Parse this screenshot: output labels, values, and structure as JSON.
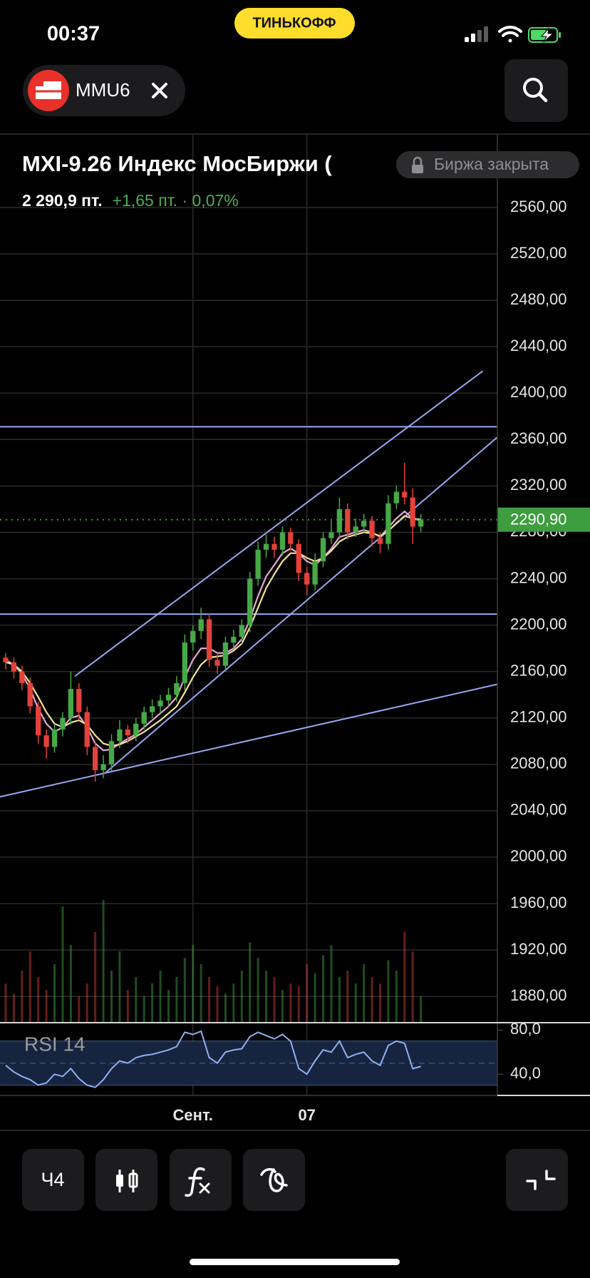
{
  "status_bar": {
    "time": "00:37",
    "brand": "ТИНЬКОФФ"
  },
  "header": {
    "ticker": "MMU6"
  },
  "instrument": {
    "title": "MXI-9.26 Индекс МосБиржи (",
    "status": "Биржа закрыта",
    "price": "2 290,9 пт.",
    "change": "+1,65 пт. · 0,07%"
  },
  "chart_data": [
    {
      "type": "candlestick",
      "up_color": "#46a946",
      "down_color": "#e2423a",
      "xlim": [
        -0.7,
        60.4
      ],
      "ylim": [
        1857.3,
        2623.3
      ],
      "yticks": [
        {
          "value": 2560,
          "label": "2560,00"
        },
        {
          "value": 2520,
          "label": "2520,00"
        },
        {
          "value": 2480,
          "label": "2480,00"
        },
        {
          "value": 2440,
          "label": "2440,00"
        },
        {
          "value": 2400,
          "label": "2400,00"
        },
        {
          "value": 2360,
          "label": "2360,00"
        },
        {
          "value": 2320,
          "label": "2320,00"
        },
        {
          "value": 2280,
          "label": "2280,00"
        },
        {
          "value": 2240,
          "label": "2240,00"
        },
        {
          "value": 2200,
          "label": "2200,00"
        },
        {
          "value": 2160,
          "label": "2160,00"
        },
        {
          "value": 2120,
          "label": "2120,00"
        },
        {
          "value": 2080,
          "label": "2080,00"
        },
        {
          "value": 2040,
          "label": "2040,00"
        },
        {
          "value": 2000,
          "label": "2000,00"
        },
        {
          "value": 1960,
          "label": "1960,00"
        },
        {
          "value": 1920,
          "label": "1920,00"
        },
        {
          "value": 1880,
          "label": "1880,00"
        }
      ],
      "grid": true,
      "categories": [
        null,
        null,
        null,
        null,
        null,
        null,
        null,
        null,
        null,
        null,
        null,
        null,
        null,
        null,
        null,
        null,
        null,
        null,
        null,
        null,
        null,
        null,
        null,
        "Сент.",
        null,
        null,
        null,
        null,
        null,
        null,
        null,
        null,
        null,
        null,
        null,
        null,
        null,
        "07",
        null,
        null,
        null,
        null,
        null,
        null,
        null,
        null,
        null,
        null,
        null,
        null,
        null,
        null
      ],
      "open": [
        2172,
        2168,
        2160,
        2150,
        2130,
        2105,
        2095,
        2110,
        2120,
        2145,
        2125,
        2095,
        2075,
        2080,
        2100,
        2110,
        2105,
        2115,
        2125,
        2130,
        2135,
        2140,
        2150,
        2185,
        2195,
        2205,
        2170,
        2165,
        2185,
        2190,
        2200,
        2240,
        2265,
        2270,
        2265,
        2280,
        2270,
        2245,
        2235,
        2255,
        2275,
        2280,
        2300,
        2280,
        2285,
        2290,
        2275,
        2270,
        2305,
        2315,
        2310,
        2285
      ],
      "high": [
        2176,
        2172,
        2165,
        2155,
        2134,
        2110,
        2115,
        2125,
        2160,
        2150,
        2130,
        2100,
        2088,
        2106,
        2118,
        2114,
        2120,
        2130,
        2136,
        2140,
        2146,
        2156,
        2192,
        2200,
        2215,
        2210,
        2176,
        2190,
        2196,
        2205,
        2246,
        2272,
        2278,
        2276,
        2285,
        2284,
        2274,
        2250,
        2262,
        2280,
        2290,
        2310,
        2305,
        2292,
        2296,
        2294,
        2280,
        2312,
        2320,
        2340,
        2318,
        2296
      ],
      "low": [
        2162,
        2154,
        2144,
        2124,
        2098,
        2085,
        2090,
        2104,
        2114,
        2118,
        2088,
        2065,
        2068,
        2074,
        2094,
        2098,
        2100,
        2110,
        2120,
        2124,
        2130,
        2134,
        2144,
        2178,
        2188,
        2164,
        2158,
        2160,
        2180,
        2184,
        2194,
        2234,
        2258,
        2258,
        2260,
        2264,
        2238,
        2226,
        2230,
        2250,
        2270,
        2274,
        2274,
        2276,
        2280,
        2268,
        2262,
        2265,
        2300,
        2304,
        2270,
        2280
      ],
      "close": [
        2168,
        2160,
        2150,
        2130,
        2105,
        2095,
        2110,
        2120,
        2145,
        2125,
        2095,
        2075,
        2080,
        2100,
        2110,
        2105,
        2115,
        2125,
        2130,
        2135,
        2140,
        2150,
        2185,
        2195,
        2205,
        2170,
        2165,
        2185,
        2190,
        2200,
        2240,
        2265,
        2270,
        2265,
        2280,
        2270,
        2245,
        2235,
        2255,
        2275,
        2280,
        2300,
        2280,
        2285,
        2290,
        2275,
        2270,
        2305,
        2315,
        2310,
        2285,
        2290.9
      ],
      "volume": [
        30,
        22,
        40,
        55,
        35,
        25,
        45,
        90,
        60,
        20,
        30,
        70,
        95,
        40,
        55,
        25,
        35,
        20,
        30,
        40,
        25,
        35,
        50,
        60,
        45,
        35,
        28,
        22,
        30,
        40,
        62,
        50,
        40,
        35,
        25,
        30,
        28,
        45,
        38,
        52,
        60,
        35,
        40,
        30,
        45,
        35,
        30,
        48,
        40,
        70,
        55,
        20
      ],
      "series": [
        {
          "color": "#e9a6d3",
          "values": [
            2170,
            2166,
            2158,
            2145,
            2128,
            2115,
            2108,
            2112,
            2120,
            2122,
            2112,
            2098,
            2092,
            2093,
            2098,
            2102,
            2106,
            2112,
            2118,
            2124,
            2130,
            2138,
            2155,
            2170,
            2180,
            2180,
            2176,
            2176,
            2180,
            2188,
            2205,
            2225,
            2242,
            2252,
            2262,
            2266,
            2262,
            2255,
            2252,
            2258,
            2266,
            2276,
            2278,
            2280,
            2282,
            2280,
            2276,
            2284,
            2292,
            2298,
            2292,
            2291
          ]
        },
        {
          "color": "#f2e38e",
          "values": [
            2168,
            2166,
            2160,
            2150,
            2138,
            2125,
            2115,
            2112,
            2116,
            2118,
            2114,
            2105,
            2098,
            2096,
            2097,
            2100,
            2104,
            2108,
            2113,
            2118,
            2124,
            2130,
            2142,
            2155,
            2166,
            2172,
            2173,
            2174,
            2178,
            2184,
            2198,
            2215,
            2232,
            2244,
            2255,
            2262,
            2262,
            2258,
            2255,
            2258,
            2264,
            2272,
            2276,
            2278,
            2280,
            2279,
            2277,
            2281,
            2288,
            2294,
            2292,
            2290
          ]
        }
      ],
      "levels": [
        2371,
        2209.5
      ],
      "drawings": [
        {
          "x": [
            8.5,
            58.6
          ],
          "y": [
            2156,
            2419
          ]
        },
        {
          "x": [
            12.3,
            60.4
          ],
          "y": [
            2073,
            2362
          ]
        },
        {
          "x": [
            -0.7,
            60.4
          ],
          "y": [
            2052,
            2149
          ]
        }
      ],
      "drawing_color": "#9aa6f2",
      "last_price": {
        "value": 2290.9,
        "label": "2290,90"
      },
      "last_price_color": "#3e9d3e"
    },
    {
      "type": "line",
      "title": "RSI 14",
      "color": "#8fb0f0",
      "values": [
        48,
        42,
        38,
        35,
        30,
        32,
        40,
        38,
        45,
        36,
        30,
        28,
        35,
        45,
        52,
        50,
        55,
        57,
        58,
        60,
        62,
        65,
        78,
        76,
        79,
        55,
        50,
        60,
        62,
        63,
        74,
        78,
        75,
        72,
        76,
        70,
        45,
        40,
        52,
        62,
        60,
        70,
        55,
        58,
        60,
        52,
        48,
        66,
        70,
        68,
        45,
        47
      ],
      "ylim": [
        20.7,
        86.7
      ],
      "yticks": [
        {
          "value": 80,
          "label": "80,0"
        },
        {
          "value": 40,
          "label": "40,0"
        }
      ],
      "band": [
        30,
        70
      ],
      "midline": 50,
      "band_color": "#16243f"
    }
  ],
  "toolbar": {
    "interval": "Ч4"
  }
}
